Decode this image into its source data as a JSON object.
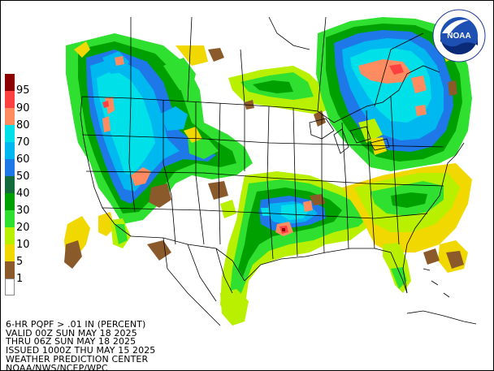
{
  "legend": {
    "items": [
      {
        "label": "95",
        "color": "#8b0000"
      },
      {
        "label": "90",
        "color": "#ff4040"
      },
      {
        "label": "80",
        "color": "#ff8c60"
      },
      {
        "label": "70",
        "color": "#00e0e8"
      },
      {
        "label": "60",
        "color": "#00b8f0"
      },
      {
        "label": "50",
        "color": "#1e78e8"
      },
      {
        "label": "40",
        "color": "#146a3a"
      },
      {
        "label": "30",
        "color": "#00a000"
      },
      {
        "label": "20",
        "color": "#30e030"
      },
      {
        "label": "10",
        "color": "#b8f000"
      },
      {
        "label": "5",
        "color": "#f0d800"
      },
      {
        "label": "1",
        "color": "#8b5a2b"
      },
      {
        "label": "",
        "color": "#ffffff"
      }
    ]
  },
  "caption": {
    "line1": "6-HR PQPF > .01 IN (PERCENT)",
    "line2": "VALID 00Z SUN MAY 18 2025",
    "line3": "THRU 06Z SUN MAY 18 2025",
    "line4": "ISSUED 1000Z THU MAY 15 2025",
    "line5": "WEATHER PREDICTION CENTER",
    "line6": "NOAA/NWS/NCEP/WPC"
  },
  "logo": {
    "text": "NOAA",
    "ring_text": "NATIONAL OCEANIC AND ATMOSPHERIC ADMINISTRATION",
    "ring_text_bottom": "U.S. DEPARTMENT OF COMMERCE"
  }
}
